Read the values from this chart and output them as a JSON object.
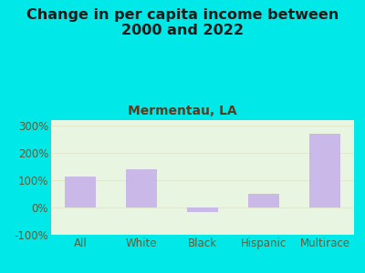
{
  "title": "Change in per capita income between\n2000 and 2022",
  "subtitle": "Mermentau, LA",
  "categories": [
    "All",
    "White",
    "Black",
    "Hispanic",
    "Multirace"
  ],
  "values": [
    115,
    140,
    -15,
    50,
    270
  ],
  "bar_color": "#c9b8e8",
  "title_fontsize": 11.5,
  "subtitle_fontsize": 10,
  "subtitle_color": "#5c3a1e",
  "title_color": "#1a1a1a",
  "tick_label_color": "#5c5c3a",
  "background_outer": "#00e8e8",
  "background_plot_top": "#e8f5e0",
  "background_plot_bottom": "#f5faf0",
  "ylim": [
    -100,
    320
  ],
  "yticks": [
    -100,
    0,
    100,
    200,
    300
  ],
  "ytick_labels": [
    "-100%",
    "0%",
    "100%",
    "200%",
    "300%"
  ],
  "grid_color": "#e0e8d0",
  "bar_width": 0.5
}
